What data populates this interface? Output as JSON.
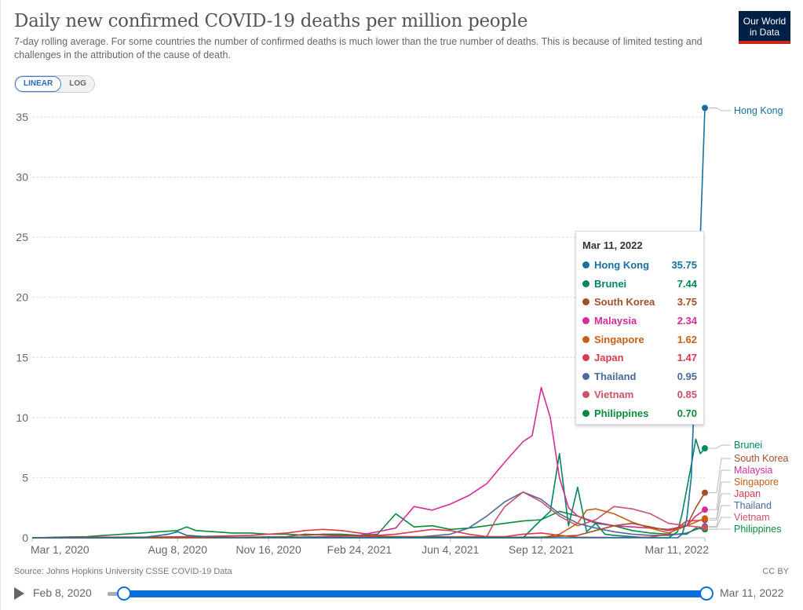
{
  "header": {
    "title": "Daily new confirmed COVID-19 deaths per million people",
    "subtitle": "7-day rolling average. For some countries the number of confirmed deaths is much lower than the true number of deaths. This is because of limited testing and challenges in the attribution of the cause of death.",
    "logo_line1": "Our World",
    "logo_line2": "in Data"
  },
  "controls": {
    "linear_label": "LINEAR",
    "log_label": "LOG",
    "active_scale": "linear"
  },
  "tooltip": {
    "date": "Mar 11, 2022",
    "rows": [
      {
        "name": "Hong Kong",
        "value": "35.75",
        "color": "#18709e"
      },
      {
        "name": "Brunei",
        "value": "7.44",
        "color": "#00875e"
      },
      {
        "name": "South Korea",
        "value": "3.75",
        "color": "#a2502a"
      },
      {
        "name": "Malaysia",
        "value": "2.34",
        "color": "#d52c9a"
      },
      {
        "name": "Singapore",
        "value": "1.62",
        "color": "#c95f16"
      },
      {
        "name": "Japan",
        "value": "1.47",
        "color": "#d93a4f"
      },
      {
        "name": "Thailand",
        "value": "0.95",
        "color": "#4c6a9c"
      },
      {
        "name": "Vietnam",
        "value": "0.85",
        "color": "#c95468"
      },
      {
        "name": "Philippines",
        "value": "0.70",
        "color": "#098c3c"
      }
    ]
  },
  "footer": {
    "source": "Source: Johns Hopkins University CSSE COVID-19 Data",
    "license": "CC BY"
  },
  "timeline": {
    "start_label": "Feb 8, 2020",
    "end_label": "Mar 11, 2022"
  },
  "chart_data": {
    "type": "line",
    "title": "Daily new confirmed COVID-19 deaths per million people",
    "xlabel": "",
    "ylabel": "",
    "ylim": [
      0,
      35
    ],
    "yticks": [
      0,
      5,
      10,
      15,
      20,
      25,
      30,
      35
    ],
    "grid": true,
    "x_domain_days": [
      0,
      740
    ],
    "x_origin_date": "Mar 1, 2020",
    "xticks": [
      {
        "day": 0,
        "label": "Mar 1, 2020"
      },
      {
        "day": 160,
        "label": "Aug 8, 2020"
      },
      {
        "day": 260,
        "label": "Nov 16, 2020"
      },
      {
        "day": 360,
        "label": "Feb 24, 2021"
      },
      {
        "day": 460,
        "label": "Jun 4, 2021"
      },
      {
        "day": 560,
        "label": "Sep 12, 2021"
      },
      {
        "day": 740,
        "label": "Mar 11, 2022"
      }
    ],
    "legend": "right-end-labels",
    "series": [
      {
        "name": "Philippines",
        "color": "#098c3c",
        "x": [
          0,
          30,
          60,
          80,
          100,
          120,
          140,
          160,
          170,
          180,
          200,
          220,
          240,
          260,
          280,
          300,
          320,
          340,
          360,
          380,
          400,
          420,
          440,
          460,
          480,
          500,
          520,
          540,
          560,
          580,
          600,
          620,
          640,
          660,
          680,
          700,
          720,
          730,
          740
        ],
        "y": [
          0,
          0.05,
          0.1,
          0.2,
          0.3,
          0.4,
          0.5,
          0.6,
          0.9,
          0.6,
          0.5,
          0.4,
          0.4,
          0.3,
          0.3,
          0.2,
          0.3,
          0.3,
          0.2,
          0.3,
          2.0,
          0.9,
          1.0,
          0.7,
          0.8,
          1.0,
          1.2,
          1.4,
          1.5,
          2.2,
          1.8,
          1.2,
          1.0,
          0.6,
          0.4,
          0.3,
          0.3,
          0.8,
          0.7
        ]
      },
      {
        "name": "Brunei",
        "color": "#00875e",
        "x": [
          0,
          400,
          520,
          540,
          560,
          570,
          580,
          590,
          600,
          610,
          620,
          630,
          640,
          660,
          680,
          700,
          710,
          715,
          720,
          725,
          730,
          735,
          740
        ],
        "y": [
          0,
          0,
          0,
          0,
          1.5,
          2.2,
          7.0,
          1.0,
          4.2,
          0.5,
          1.2,
          0.3,
          0.2,
          0.1,
          0,
          0,
          0.5,
          2.0,
          4.0,
          6.0,
          8.2,
          7.0,
          7.44
        ]
      },
      {
        "name": "Malaysia",
        "color": "#d52c9a",
        "x": [
          0,
          300,
          360,
          400,
          420,
          440,
          460,
          480,
          500,
          520,
          540,
          550,
          560,
          570,
          580,
          590,
          600,
          620,
          640,
          660,
          680,
          700,
          720,
          730,
          740
        ],
        "y": [
          0,
          0.05,
          0.2,
          0.8,
          2.6,
          2.3,
          2.8,
          3.5,
          4.5,
          6.3,
          8.0,
          8.5,
          12.5,
          10.0,
          5.0,
          2.5,
          1.8,
          1.3,
          1.0,
          0.9,
          0.8,
          0.7,
          1.0,
          1.8,
          2.34
        ]
      },
      {
        "name": "Thailand",
        "color": "#4c6a9c",
        "x": [
          0,
          400,
          430,
          460,
          480,
          500,
          520,
          540,
          560,
          580,
          600,
          620,
          640,
          660,
          680,
          700,
          720,
          740
        ],
        "y": [
          0,
          0,
          0.1,
          0.3,
          0.8,
          1.8,
          3.0,
          3.8,
          3.2,
          2.0,
          1.2,
          0.8,
          0.5,
          0.3,
          0.2,
          0.2,
          0.4,
          0.95
        ]
      },
      {
        "name": "Vietnam",
        "color": "#c95468",
        "x": [
          0,
          500,
          510,
          520,
          540,
          560,
          580,
          600,
          620,
          640,
          660,
          680,
          700,
          720,
          740
        ],
        "y": [
          0,
          0.1,
          1.5,
          2.6,
          3.8,
          3.0,
          1.8,
          1.0,
          1.5,
          2.6,
          2.4,
          2.0,
          1.2,
          1.0,
          0.85
        ]
      },
      {
        "name": "Japan",
        "color": "#d93a4f",
        "x": [
          0,
          60,
          120,
          180,
          240,
          280,
          300,
          320,
          340,
          360,
          380,
          400,
          440,
          460,
          480,
          500,
          520,
          540,
          560,
          580,
          600,
          640,
          680,
          700,
          720,
          740
        ],
        "y": [
          0,
          0.05,
          0.05,
          0.1,
          0.2,
          0.4,
          0.6,
          0.7,
          0.6,
          0.4,
          0.2,
          0.3,
          0.7,
          0.6,
          0.3,
          0.1,
          0.1,
          0.3,
          0.4,
          0.2,
          0.05,
          0.02,
          0.05,
          0.3,
          1.4,
          1.47
        ]
      },
      {
        "name": "Singapore",
        "color": "#c95f16",
        "x": [
          0,
          500,
          560,
          580,
          600,
          610,
          620,
          640,
          660,
          680,
          700,
          720,
          740
        ],
        "y": [
          0,
          0,
          0,
          0.3,
          1.2,
          2.3,
          2.4,
          2.0,
          1.3,
          0.8,
          0.4,
          1.0,
          1.62
        ]
      },
      {
        "name": "South Korea",
        "color": "#a2502a",
        "x": [
          0,
          200,
          280,
          300,
          340,
          400,
          500,
          560,
          600,
          620,
          640,
          660,
          680,
          700,
          720,
          730,
          740
        ],
        "y": [
          0,
          0.02,
          0.1,
          0.3,
          0.2,
          0.1,
          0.05,
          0.05,
          0.2,
          0.6,
          1.0,
          1.2,
          0.9,
          0.6,
          1.0,
          2.5,
          3.75
        ]
      },
      {
        "name": "Hong Kong",
        "color": "#18709e",
        "x": [
          0,
          120,
          150,
          160,
          170,
          200,
          300,
          600,
          700,
          710,
          715,
          720,
          725,
          730,
          735,
          740
        ],
        "y": [
          0,
          0,
          0.3,
          0.5,
          0.2,
          0.05,
          0.02,
          0,
          0,
          0,
          0.3,
          1.5,
          5.0,
          15.0,
          25.0,
          35.75
        ]
      }
    ],
    "end_labels": [
      {
        "name": "Hong Kong",
        "color": "#18709e"
      },
      {
        "name": "Brunei",
        "color": "#00875e"
      },
      {
        "name": "South Korea",
        "color": "#a2502a"
      },
      {
        "name": "Malaysia",
        "color": "#d52c9a"
      },
      {
        "name": "Singapore",
        "color": "#c95f16"
      },
      {
        "name": "Japan",
        "color": "#d93a4f"
      },
      {
        "name": "Thailand",
        "color": "#4c6a9c"
      },
      {
        "name": "Vietnam",
        "color": "#c95468"
      },
      {
        "name": "Philippines",
        "color": "#098c3c"
      }
    ]
  }
}
